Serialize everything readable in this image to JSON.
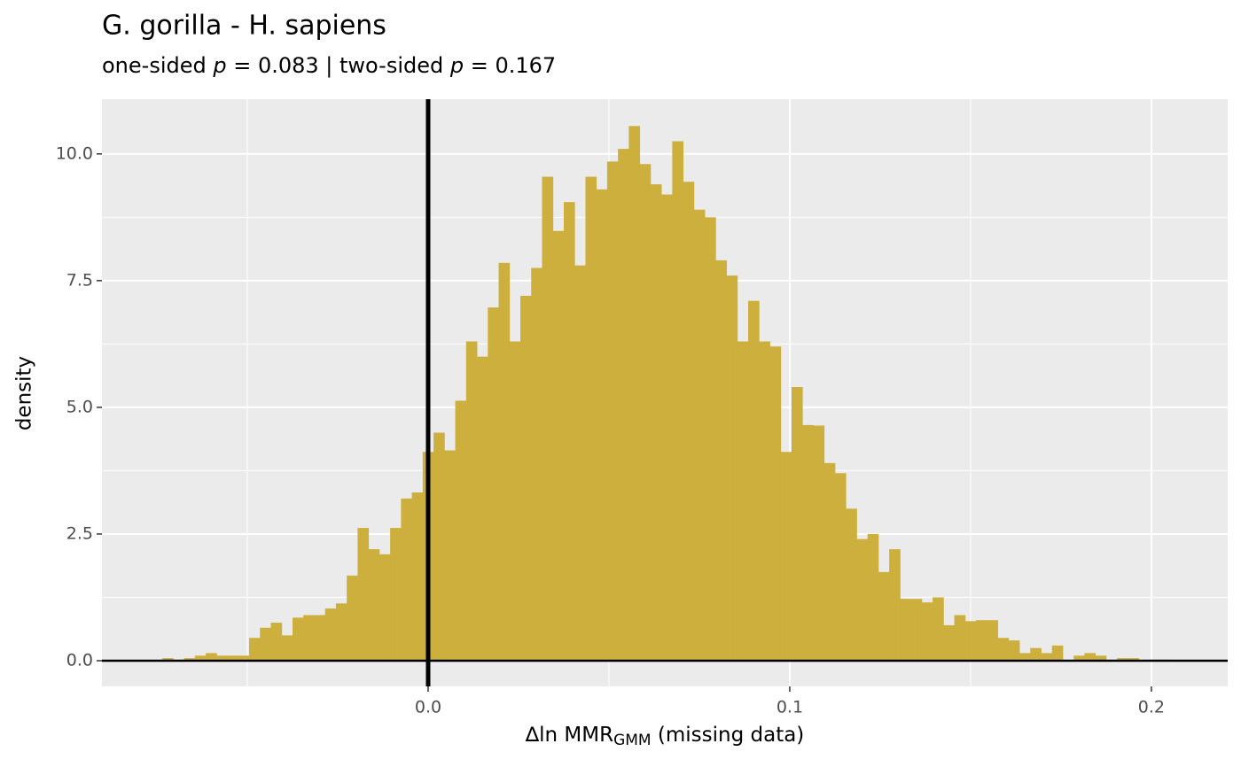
{
  "chart_data": {
    "type": "histogram",
    "title": "G. gorilla - H. sapiens",
    "subtitle": [
      {
        "text": "one-sided "
      },
      {
        "text": "p",
        "italic": true
      },
      {
        "text": " = 0.083 | two-sided "
      },
      {
        "text": "p",
        "italic": true
      },
      {
        "text": " = 0.167"
      }
    ],
    "xlabel": {
      "text": "∆ln MMR",
      "sub": "GMM",
      "after": " (missing data)"
    },
    "ylabel": "density",
    "color": "#ccaf3c",
    "bins": [
      -0.0735,
      -0.0705,
      -0.0675,
      -0.0645,
      -0.0615,
      -0.0585,
      -0.0555,
      -0.0525,
      -0.0495,
      -0.0465,
      -0.0435,
      -0.0405,
      -0.0375,
      -0.0345,
      -0.0315,
      -0.0285,
      -0.0255,
      -0.0225,
      -0.0195,
      -0.0165,
      -0.0135,
      -0.0105,
      -0.0075,
      -0.0045,
      -0.0015,
      0.0015,
      0.0045,
      0.0075,
      0.0105,
      0.0135,
      0.0165,
      0.0195,
      0.0225,
      0.0255,
      0.0285,
      0.0315,
      0.0345,
      0.0375,
      0.0405,
      0.0435,
      0.0465,
      0.0495,
      0.0525,
      0.0555,
      0.0585,
      0.0615,
      0.0645,
      0.0675,
      0.0705,
      0.0735,
      0.0765,
      0.0795,
      0.0825,
      0.0855,
      0.0885,
      0.0915,
      0.0945,
      0.0975,
      0.1005,
      0.1035,
      0.1065,
      0.1095,
      0.1125,
      0.1155,
      0.1185,
      0.1215,
      0.1245,
      0.1275,
      0.1305,
      0.1335,
      0.1365,
      0.1395,
      0.1425,
      0.1455,
      0.1485,
      0.1515,
      0.1545,
      0.1575,
      0.1605,
      0.1635,
      0.1665,
      0.1695,
      0.1725,
      0.1755,
      0.1785,
      0.1815,
      0.1845,
      0.1875,
      0.1905,
      0.1935,
      0.1965,
      0.1995,
      0.2025,
      0.2055
    ],
    "values": [
      0.05,
      0.02,
      0.05,
      0.1,
      0.15,
      0.1,
      0.1,
      0.1,
      0.45,
      0.65,
      0.75,
      0.5,
      0.85,
      0.9,
      0.9,
      1.03,
      1.13,
      1.68,
      2.62,
      2.2,
      2.1,
      2.62,
      3.2,
      3.32,
      4.12,
      4.5,
      4.15,
      5.13,
      6.3,
      6.0,
      6.97,
      7.85,
      6.3,
      7.2,
      7.75,
      9.55,
      8.48,
      9.05,
      7.8,
      9.55,
      9.3,
      9.85,
      10.1,
      10.55,
      9.8,
      9.4,
      9.2,
      10.25,
      9.45,
      8.9,
      8.75,
      7.9,
      7.6,
      6.3,
      7.1,
      6.3,
      6.2,
      4.12,
      5.4,
      4.65,
      4.64,
      3.9,
      3.7,
      3.0,
      2.4,
      2.5,
      1.75,
      2.2,
      1.22,
      1.22,
      1.15,
      1.25,
      0.7,
      0.9,
      0.78,
      0.8,
      0.8,
      0.45,
      0.4,
      0.15,
      0.25,
      0.15,
      0.3,
      0,
      0.1,
      0.15,
      0.1,
      0,
      0.05,
      0.05,
      0,
      0.02,
      0.02
    ],
    "xlim": [
      -0.0902,
      0.2211
    ],
    "ylim": [
      -0.507,
      11.08
    ],
    "xticks": [
      {
        "value": 0,
        "label": "0.0"
      },
      0.1,
      0.2
    ],
    "yticks": [
      {
        "value": 0,
        "label": "0.0"
      },
      2.5,
      {
        "value": 5,
        "label": "5.0"
      },
      7.5,
      {
        "value": 10,
        "label": "10.0"
      }
    ],
    "vline": 0,
    "hline": 0,
    "grid": true
  }
}
